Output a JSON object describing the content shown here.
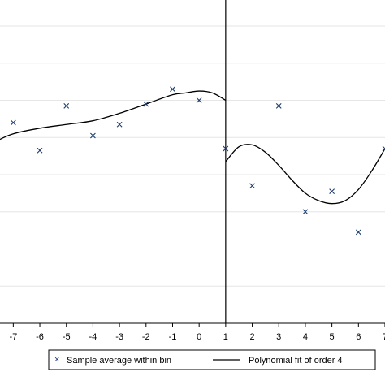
{
  "chart_data": {
    "type": "scatter",
    "title": "",
    "xlabel": "",
    "ylabel": "",
    "xlim": [
      -7.5,
      7
    ],
    "ylim": [
      0,
      8.7
    ],
    "grid": "horizontal",
    "cutoff": 1,
    "x_ticks": [
      -7,
      -6,
      -5,
      -4,
      -3,
      -2,
      -1,
      0,
      1,
      2,
      3,
      4,
      5,
      6,
      7
    ],
    "x_tick_labels": [
      "-7",
      "-6",
      "-5",
      "-4",
      "-3",
      "-2",
      "-1",
      "0",
      "1",
      "2",
      "3",
      "4",
      "5",
      "6",
      "7"
    ],
    "y_gridlines": [
      1,
      2,
      3,
      4,
      5,
      6,
      7,
      8
    ],
    "series": [
      {
        "name": "Sample average within bin",
        "kind": "scatter",
        "marker": "x",
        "color": "#1a3a6e",
        "points": [
          {
            "x": -7,
            "y": 5.4
          },
          {
            "x": -6,
            "y": 4.65
          },
          {
            "x": -5,
            "y": 5.85
          },
          {
            "x": -4,
            "y": 5.05
          },
          {
            "x": -3,
            "y": 5.35
          },
          {
            "x": -2,
            "y": 5.9
          },
          {
            "x": -1,
            "y": 6.3
          },
          {
            "x": 0,
            "y": 6.0
          },
          {
            "x": 1,
            "y": 4.7
          },
          {
            "x": 2,
            "y": 3.7
          },
          {
            "x": 3,
            "y": 5.85
          },
          {
            "x": 4,
            "y": 3.0
          },
          {
            "x": 5,
            "y": 3.55
          },
          {
            "x": 6,
            "y": 2.45
          },
          {
            "x": 7,
            "y": 4.7
          }
        ]
      },
      {
        "name": "Polynomial fit of order 4",
        "kind": "line",
        "color": "#000000",
        "segments": [
          [
            {
              "x": -7.5,
              "y": 4.95
            },
            {
              "x": -7,
              "y": 5.1
            },
            {
              "x": -6,
              "y": 5.25
            },
            {
              "x": -5,
              "y": 5.35
            },
            {
              "x": -4,
              "y": 5.45
            },
            {
              "x": -3,
              "y": 5.65
            },
            {
              "x": -2,
              "y": 5.9
            },
            {
              "x": -1,
              "y": 6.15
            },
            {
              "x": -0.5,
              "y": 6.2
            },
            {
              "x": 0,
              "y": 6.25
            },
            {
              "x": 0.5,
              "y": 6.2
            },
            {
              "x": 1,
              "y": 6.0
            }
          ],
          [
            {
              "x": 1,
              "y": 4.35
            },
            {
              "x": 1.5,
              "y": 4.75
            },
            {
              "x": 2,
              "y": 4.8
            },
            {
              "x": 2.5,
              "y": 4.6
            },
            {
              "x": 3,
              "y": 4.25
            },
            {
              "x": 3.5,
              "y": 3.85
            },
            {
              "x": 4,
              "y": 3.5
            },
            {
              "x": 4.5,
              "y": 3.3
            },
            {
              "x": 5,
              "y": 3.22
            },
            {
              "x": 5.5,
              "y": 3.3
            },
            {
              "x": 6,
              "y": 3.6
            },
            {
              "x": 6.5,
              "y": 4.1
            },
            {
              "x": 7,
              "y": 4.7
            }
          ]
        ]
      }
    ],
    "legend": {
      "placement": "bottom",
      "entries": [
        "Sample average within bin",
        "Polynomial fit of order 4"
      ]
    }
  }
}
